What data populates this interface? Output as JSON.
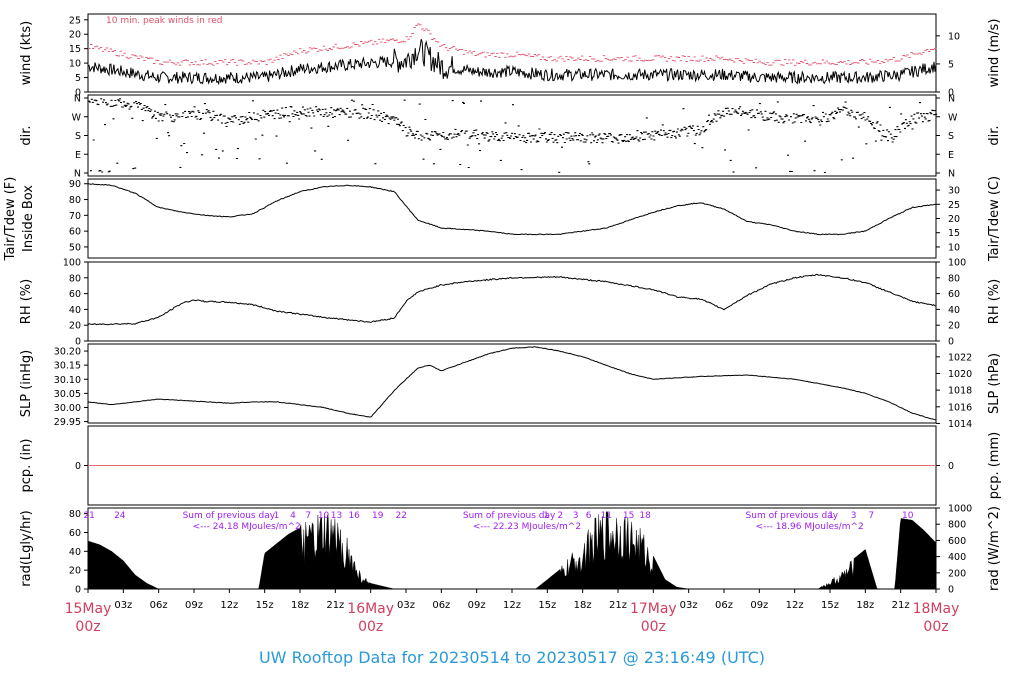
{
  "title": "UW Rooftop Data for 20230514  to  20230517 @ 23:16:49  (UTC)",
  "wind_note": "10 min. peak winds in red",
  "colors": {
    "peak": "#e0506a",
    "zero_line": "#e07070",
    "title": "#2a9ad8",
    "day_label": "#d04060",
    "annotation": "#a020f0"
  },
  "x_axis": {
    "ticks": [
      "03z",
      "06z",
      "09z",
      "12z",
      "15z",
      "18z",
      "21z",
      "03z",
      "06z",
      "09z",
      "12z",
      "15z",
      "18z",
      "21z",
      "03z",
      "06z",
      "09z",
      "12z",
      "15z",
      "18z",
      "21z"
    ],
    "days": [
      {
        "label": "15May",
        "sub": "00z"
      },
      {
        "label": "16May",
        "sub": "00z"
      },
      {
        "label": "17May",
        "sub": "00z"
      },
      {
        "label": "18May",
        "sub": "00z"
      }
    ]
  },
  "chart_data": [
    {
      "panel": "wind",
      "type": "line",
      "left_label": "wind (kts)",
      "right_label": "wind (m/s)",
      "left_ticks": [
        "0",
        "5",
        "10",
        "15",
        "20",
        "25"
      ],
      "right_ticks": [
        "0",
        "5",
        "10"
      ],
      "ylim": [
        0,
        27
      ],
      "x_hours": [
        0,
        3,
        6,
        9,
        12,
        15,
        18,
        21,
        24,
        27,
        28,
        30,
        33,
        36,
        39,
        42,
        45,
        48,
        51,
        54,
        57,
        60,
        63,
        66,
        69,
        72
      ],
      "series": [
        {
          "values": [
            9,
            7,
            5,
            5,
            5,
            5,
            8,
            9,
            10,
            11,
            15,
            9,
            7,
            7,
            6,
            6,
            6,
            6,
            6,
            6,
            5,
            5,
            5,
            5,
            6,
            9
          ]
        }
      ]
    },
    {
      "panel": "dir",
      "type": "scatter",
      "left_label": "dir.",
      "right_label": "dir.",
      "left_ticks": [
        "N",
        "E",
        "S",
        "W",
        "N"
      ],
      "right_ticks": [
        "N",
        "E",
        "S",
        "W",
        "N"
      ]
    },
    {
      "panel": "temp",
      "type": "line",
      "left_label_1": "Tair/Tdew (F)",
      "left_label_2": "Inside Box",
      "right_label": "Tair/Tdew (C)",
      "left_ticks": [
        "50",
        "60",
        "70",
        "80",
        "90"
      ],
      "right_ticks": [
        "10",
        "15",
        "20",
        "25",
        "30"
      ],
      "ylim": [
        43,
        93
      ],
      "x_hours": [
        0,
        2,
        4,
        6,
        8,
        10,
        12,
        14,
        16,
        18,
        20,
        22,
        24,
        26,
        28,
        30,
        32,
        34,
        36,
        40,
        44,
        48,
        50,
        52,
        54,
        56,
        58,
        60,
        62,
        64,
        66,
        68,
        70,
        72
      ],
      "series": [
        {
          "values": [
            90,
            89,
            84,
            75,
            72,
            70,
            69,
            71,
            79,
            85,
            88,
            89,
            88,
            85,
            67,
            62,
            61,
            60,
            58,
            58,
            62,
            72,
            76,
            78,
            74,
            66,
            64,
            60,
            58,
            58,
            60,
            68,
            75,
            77
          ]
        }
      ]
    },
    {
      "panel": "rh",
      "type": "line",
      "left_label": "RH (%)",
      "right_label": "RH (%)",
      "left_ticks": [
        "0",
        "20",
        "40",
        "60",
        "80",
        "100"
      ],
      "right_ticks": [
        "0",
        "20",
        "40",
        "60",
        "80",
        "100"
      ],
      "ylim": [
        0,
        100
      ],
      "x_hours": [
        0,
        4,
        6,
        8,
        9,
        10,
        12,
        14,
        16,
        18,
        20,
        22,
        24,
        26,
        27,
        28,
        30,
        32,
        36,
        40,
        44,
        48,
        50,
        52,
        54,
        56,
        58,
        60,
        62,
        64,
        66,
        68,
        70,
        72
      ],
      "series": [
        {
          "values": [
            21,
            22,
            30,
            48,
            52,
            50,
            49,
            46,
            38,
            34,
            30,
            27,
            24,
            29,
            50,
            62,
            71,
            75,
            80,
            81,
            75,
            65,
            56,
            53,
            40,
            58,
            72,
            80,
            84,
            80,
            74,
            62,
            50,
            45
          ]
        }
      ]
    },
    {
      "panel": "slp",
      "type": "line",
      "left_label": "SLP (inHg)",
      "right_label": "SLP (hPa)",
      "left_ticks": [
        "29.95",
        "30.00",
        "30.05",
        "30.10",
        "30.15",
        "30.20"
      ],
      "right_ticks": [
        "1014",
        "1016",
        "1018",
        "1020",
        "1022"
      ],
      "ylim": [
        29.945,
        30.225
      ],
      "x_hours": [
        0,
        2,
        4,
        6,
        8,
        10,
        12,
        14,
        16,
        18,
        20,
        22,
        24,
        26,
        28,
        29,
        30,
        32,
        34,
        36,
        38,
        40,
        42,
        44,
        46,
        48,
        52,
        56,
        60,
        64,
        66,
        68,
        70,
        72
      ],
      "series": [
        {
          "values": [
            30.02,
            30.01,
            30.02,
            30.03,
            30.025,
            30.02,
            30.015,
            30.02,
            30.02,
            30.01,
            30.0,
            29.98,
            29.965,
            30.06,
            30.14,
            30.15,
            30.13,
            30.16,
            30.19,
            30.21,
            30.215,
            30.2,
            30.18,
            30.15,
            30.12,
            30.1,
            30.11,
            30.115,
            30.1,
            30.07,
            30.05,
            30.02,
            29.98,
            29.955
          ]
        }
      ]
    },
    {
      "panel": "pcp",
      "type": "line",
      "left_label": "pcp. (in)",
      "right_label": "pcp. (mm)",
      "left_ticks": [
        "0"
      ],
      "right_ticks": [
        "0"
      ],
      "ylim": [
        -1,
        1
      ],
      "series": [
        {
          "values": [
            0
          ]
        }
      ]
    },
    {
      "panel": "rad",
      "type": "area",
      "left_label": "rad(Lgly/hr)",
      "right_label": "rad (W/m^2)",
      "left_ticks": [
        "0",
        "20",
        "40",
        "60",
        "80"
      ],
      "right_ticks": [
        "0",
        "200",
        "400",
        "600",
        "800",
        "1000"
      ],
      "ylim": [
        0,
        86
      ],
      "x_hours": [
        0,
        1,
        2,
        3,
        4,
        5,
        6,
        14.5,
        15,
        17,
        19,
        20,
        21,
        22,
        23,
        24,
        25,
        26,
        27,
        38,
        40,
        42,
        43,
        44,
        45,
        46,
        47,
        48,
        49,
        50,
        51,
        62,
        64,
        65,
        66,
        67,
        68,
        68.5,
        69,
        70,
        71,
        72
      ],
      "series": [
        {
          "values": [
            51,
            47,
            40,
            30,
            15,
            6,
            0,
            0,
            38,
            58,
            72,
            79,
            76,
            55,
            20,
            6,
            3,
            0,
            0,
            0,
            20,
            50,
            72,
            82,
            85,
            76,
            62,
            35,
            10,
            2,
            0,
            0,
            18,
            32,
            42,
            0,
            0,
            0,
            75,
            73,
            62,
            49
          ]
        }
      ],
      "annotations": [
        {
          "text": "Sum of previous day",
          "value": "<--- 24.18 MJoules/m^2"
        },
        {
          "text": "Sum of previous day",
          "value": "<--- 22.23 MJoules/m^2"
        },
        {
          "text": "Sum of previous day",
          "value": "<--- 18.96 MJoules/m^2"
        }
      ],
      "hour_labels": [
        "21",
        "24",
        "1",
        "4",
        "7",
        "10",
        "13",
        "16",
        "19",
        "22",
        "1",
        "2",
        "3",
        "6",
        "11",
        "15",
        "18",
        "1",
        "3",
        "7",
        "10"
      ]
    }
  ]
}
